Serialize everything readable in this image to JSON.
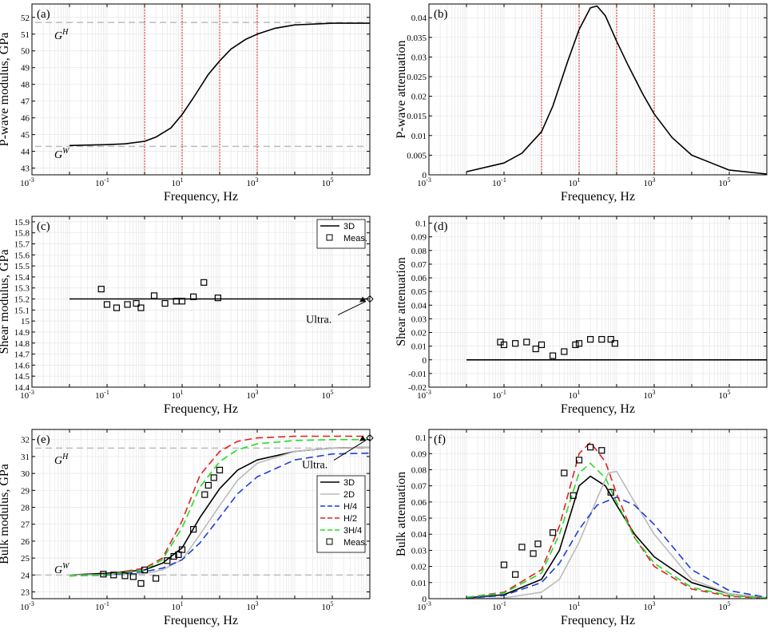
{
  "x_tick_labels": {
    "base": "10",
    "exponents": [
      "-3",
      "-1",
      "1",
      "3",
      "5"
    ]
  },
  "chart_data": [
    {
      "id": "a",
      "type": "line",
      "panel_label": "(a)",
      "xlabel": "Frequency, Hz",
      "ylabel": "P-wave modulus, GPa",
      "xscale": "log",
      "xlim": [
        0.001,
        1000000
      ],
      "ylim": [
        42.6,
        52.8
      ],
      "yticks": [
        43,
        44,
        45,
        46,
        47,
        48,
        49,
        50,
        51,
        52
      ],
      "ytick_labels": [
        "43",
        "44",
        "45",
        "46",
        "47",
        "48",
        "49",
        "50",
        "51",
        "52"
      ],
      "vlines": [
        1,
        10,
        100,
        1000
      ],
      "hlines": [
        {
          "y": 51.7,
          "label_base": "G",
          "label_sup": "H",
          "label_y": 50.9
        },
        {
          "y": 44.3,
          "label_base": "G",
          "label_sup": "W",
          "label_y": 43.8
        }
      ],
      "series": [
        {
          "name": "3D",
          "color": "#000000",
          "dash": "",
          "x": [
            0.01,
            0.1,
            0.3,
            1,
            2,
            5,
            10,
            20,
            50,
            100,
            200,
            500,
            1000,
            3000,
            10000,
            100000,
            1000000
          ],
          "y": [
            44.35,
            44.4,
            44.45,
            44.6,
            44.85,
            45.4,
            46.2,
            47.2,
            48.6,
            49.4,
            50.1,
            50.7,
            51.0,
            51.35,
            51.55,
            51.65,
            51.65
          ]
        }
      ]
    },
    {
      "id": "b",
      "type": "line",
      "panel_label": "(b)",
      "xlabel": "Frequency, Hz",
      "ylabel": "P-wave attenuation",
      "xscale": "log",
      "xlim": [
        0.001,
        1000000
      ],
      "ylim": [
        0,
        0.0435
      ],
      "yticks": [
        0,
        0.005,
        0.01,
        0.015,
        0.02,
        0.025,
        0.03,
        0.035,
        0.04
      ],
      "ytick_labels": [
        "0",
        "0.005",
        "0.01",
        "0.015",
        "0.02",
        "0.025",
        "0.03",
        "0.035",
        "0.04"
      ],
      "vlines": [
        1,
        10,
        100,
        1000
      ],
      "series": [
        {
          "name": "3D",
          "color": "#000000",
          "dash": "",
          "x": [
            0.01,
            0.1,
            0.3,
            1,
            2,
            5,
            10,
            20,
            30,
            50,
            100,
            200,
            500,
            1000,
            3000,
            10000,
            100000,
            1000000
          ],
          "y": [
            0.0008,
            0.003,
            0.0055,
            0.011,
            0.0175,
            0.029,
            0.037,
            0.0425,
            0.043,
            0.0405,
            0.034,
            0.028,
            0.0205,
            0.0155,
            0.0095,
            0.005,
            0.0012,
            0.0002
          ]
        }
      ]
    },
    {
      "id": "c",
      "type": "line",
      "panel_label": "(c)",
      "xlabel": "Frequency, Hz",
      "ylabel": "Shear modulus, GPa",
      "xscale": "log",
      "xlim": [
        0.001,
        1000000
      ],
      "ylim": [
        14.4,
        15.95
      ],
      "yticks": [
        14.4,
        14.5,
        14.6,
        14.7,
        14.8,
        14.9,
        15,
        15.1,
        15.2,
        15.3,
        15.4,
        15.5,
        15.6,
        15.7,
        15.8,
        15.9
      ],
      "ytick_labels": [
        "14.4",
        "14.5",
        "14.6",
        "14.7",
        "14.8",
        "14.9",
        "15",
        "15.1",
        "15.2",
        "15.3",
        "15.4",
        "15.5",
        "15.6",
        "15.7",
        "15.8",
        "15.9"
      ],
      "legend": {
        "position": "top-right",
        "entries": [
          {
            "label": "3D",
            "kind": "line",
            "color": "#000000",
            "dash": ""
          },
          {
            "label": "Meas.",
            "kind": "square",
            "color": "#000000"
          }
        ]
      },
      "series": [
        {
          "name": "3D",
          "color": "#000000",
          "dash": "",
          "x": [
            0.01,
            1000000
          ],
          "y": [
            15.2,
            15.2
          ]
        }
      ],
      "measurements": {
        "x": [
          0.07,
          0.1,
          0.18,
          0.35,
          0.6,
          0.8,
          1.8,
          3.5,
          7,
          10,
          20,
          38,
          90
        ],
        "y": [
          15.29,
          15.15,
          15.12,
          15.15,
          15.16,
          15.12,
          15.23,
          15.16,
          15.18,
          15.18,
          15.22,
          15.35,
          15.21
        ]
      },
      "ultra": {
        "x": 1000000,
        "y": 15.2,
        "label": "Ultra."
      }
    },
    {
      "id": "d",
      "type": "line",
      "panel_label": "(d)",
      "xlabel": "Frequency, Hz",
      "ylabel": "Shear attenuation",
      "xscale": "log",
      "xlim": [
        0.001,
        1000000
      ],
      "ylim": [
        -0.02,
        0.105
      ],
      "yticks": [
        -0.02,
        -0.01,
        0,
        0.01,
        0.02,
        0.03,
        0.04,
        0.05,
        0.06,
        0.07,
        0.08,
        0.09,
        0.1
      ],
      "ytick_labels": [
        "-0.02",
        "-0.01",
        "0",
        "0.01",
        "0.02",
        "0.03",
        "0.04",
        "0.05",
        "0.06",
        "0.07",
        "0.08",
        "0.09",
        "0.1"
      ],
      "series": [
        {
          "name": "3D",
          "color": "#000000",
          "dash": "",
          "x": [
            0.01,
            1000000
          ],
          "y": [
            0,
            0
          ]
        }
      ],
      "measurements": {
        "x": [
          0.08,
          0.1,
          0.2,
          0.4,
          0.7,
          1,
          2,
          4,
          8,
          10,
          20,
          40,
          70,
          90
        ],
        "y": [
          0.013,
          0.011,
          0.012,
          0.013,
          0.008,
          0.011,
          0.003,
          0.006,
          0.011,
          0.012,
          0.015,
          0.015,
          0.015,
          0.012
        ]
      }
    },
    {
      "id": "e",
      "type": "line",
      "panel_label": "(e)",
      "xlabel": "Frequency, Hz",
      "ylabel": "Bulk modulus, GPa",
      "xscale": "log",
      "xlim": [
        0.001,
        1000000
      ],
      "ylim": [
        22.6,
        32.6
      ],
      "yticks": [
        23,
        24,
        25,
        26,
        27,
        28,
        29,
        30,
        31,
        32
      ],
      "ytick_labels": [
        "23",
        "24",
        "25",
        "26",
        "27",
        "28",
        "29",
        "30",
        "31",
        "32"
      ],
      "hlines": [
        {
          "y": 31.5,
          "label_base": "G",
          "label_sup": "H",
          "label_y": 30.75
        },
        {
          "y": 24.0,
          "label_base": "G",
          "label_sup": "W",
          "label_y": 24.3
        }
      ],
      "legend": {
        "position": "right",
        "entries": [
          {
            "label": "3D",
            "kind": "line",
            "color": "#000000",
            "dash": ""
          },
          {
            "label": "2D",
            "kind": "line",
            "color": "#bbbbbb",
            "dash": ""
          },
          {
            "label": "H/4",
            "kind": "line",
            "color": "#1f3fd6",
            "dash": "9,5"
          },
          {
            "label": "H/2",
            "kind": "line",
            "color": "#e02020",
            "dash": "9,5"
          },
          {
            "label": "3H/4",
            "kind": "line",
            "color": "#22dd22",
            "dash": "9,5"
          },
          {
            "label": "Meas.",
            "kind": "square",
            "color": "#000000"
          }
        ]
      },
      "series": [
        {
          "name": "3D",
          "color": "#000000",
          "dash": "",
          "x": [
            0.01,
            0.1,
            1,
            3,
            10,
            30,
            100,
            300,
            1000,
            10000,
            100000,
            1000000
          ],
          "y": [
            24.0,
            24.1,
            24.3,
            24.7,
            25.6,
            27.4,
            29.1,
            30.2,
            30.8,
            31.3,
            31.5,
            31.55
          ]
        },
        {
          "name": "2D",
          "color": "#bbbbbb",
          "dash": "",
          "x": [
            0.01,
            0.1,
            1,
            3,
            10,
            30,
            100,
            300,
            1000,
            10000,
            100000,
            1000000
          ],
          "y": [
            24.0,
            24.02,
            24.08,
            24.3,
            24.9,
            26.4,
            28.1,
            29.6,
            30.6,
            31.3,
            31.5,
            31.55
          ]
        },
        {
          "name": "H/4",
          "color": "#1f3fd6",
          "dash": "9,5",
          "x": [
            0.01,
            0.1,
            1,
            3,
            10,
            30,
            100,
            300,
            1000,
            10000,
            100000,
            1000000
          ],
          "y": [
            23.95,
            24.0,
            24.2,
            24.4,
            24.9,
            25.9,
            27.4,
            28.8,
            29.8,
            30.8,
            31.15,
            31.2
          ]
        },
        {
          "name": "H/2",
          "color": "#e02020",
          "dash": "9,5",
          "x": [
            0.01,
            0.1,
            1,
            3,
            10,
            30,
            100,
            300,
            1000,
            10000,
            100000,
            1000000
          ],
          "y": [
            23.95,
            24.05,
            24.4,
            25.0,
            27.2,
            29.9,
            31.3,
            31.9,
            32.1,
            32.2,
            32.2,
            32.2
          ]
        },
        {
          "name": "3H/4",
          "color": "#22dd22",
          "dash": "9,5",
          "x": [
            0.01,
            0.1,
            1,
            3,
            10,
            30,
            100,
            300,
            1000,
            10000,
            100000,
            1000000
          ],
          "y": [
            23.95,
            24.03,
            24.3,
            24.9,
            26.8,
            29.2,
            30.7,
            31.4,
            31.75,
            31.95,
            32.0,
            32.0
          ]
        }
      ],
      "measurements": {
        "x": [
          0.08,
          0.15,
          0.3,
          0.5,
          0.8,
          1.0,
          2,
          4,
          6,
          8,
          10,
          20,
          40,
          50,
          70,
          100
        ],
        "y": [
          24.05,
          24.0,
          23.95,
          23.9,
          23.5,
          24.3,
          23.8,
          24.85,
          25.1,
          25.2,
          25.5,
          26.7,
          28.75,
          29.3,
          29.75,
          30.2
        ]
      },
      "ultra": {
        "x": 1000000,
        "y": 32.1,
        "label": "Ultra."
      }
    },
    {
      "id": "f",
      "type": "line",
      "panel_label": "(f)",
      "xlabel": "Frequency, Hz",
      "ylabel": "Bulk attenuation",
      "xscale": "log",
      "xlim": [
        0.001,
        1000000
      ],
      "ylim": [
        0,
        0.105
      ],
      "yticks": [
        0,
        0.01,
        0.02,
        0.03,
        0.04,
        0.05,
        0.06,
        0.07,
        0.08,
        0.09,
        0.1
      ],
      "ytick_labels": [
        "0",
        "0.01",
        "0.02",
        "0.03",
        "0.04",
        "0.05",
        "0.06",
        "0.07",
        "0.08",
        "0.09",
        "0.1"
      ],
      "series": [
        {
          "name": "3D",
          "color": "#000000",
          "dash": "",
          "x": [
            0.01,
            0.1,
            1,
            3,
            10,
            20,
            50,
            100,
            300,
            1000,
            10000,
            100000,
            1000000
          ],
          "y": [
            0.0005,
            0.0025,
            0.012,
            0.03,
            0.07,
            0.076,
            0.07,
            0.058,
            0.04,
            0.026,
            0.01,
            0.003,
            0.0005
          ]
        },
        {
          "name": "2D",
          "color": "#bbbbbb",
          "dash": "",
          "x": [
            0.01,
            0.1,
            1,
            3,
            10,
            30,
            60,
            100,
            300,
            1000,
            10000,
            100000,
            1000000
          ],
          "y": [
            0.0,
            0.0005,
            0.004,
            0.012,
            0.035,
            0.062,
            0.078,
            0.079,
            0.06,
            0.04,
            0.012,
            0.003,
            0.0005
          ]
        },
        {
          "name": "H/4",
          "color": "#1f3fd6",
          "dash": "9,5",
          "x": [
            0.01,
            0.1,
            1,
            3,
            10,
            30,
            100,
            300,
            1000,
            10000,
            100000,
            1000000
          ],
          "y": [
            0.0003,
            0.002,
            0.01,
            0.022,
            0.043,
            0.058,
            0.063,
            0.058,
            0.046,
            0.018,
            0.005,
            0.0008
          ]
        },
        {
          "name": "H/2",
          "color": "#e02020",
          "dash": "9,5",
          "x": [
            0.01,
            0.1,
            1,
            3,
            10,
            20,
            50,
            100,
            300,
            1000,
            10000,
            100000,
            1000000
          ],
          "y": [
            0.0008,
            0.004,
            0.018,
            0.045,
            0.09,
            0.097,
            0.085,
            0.065,
            0.038,
            0.02,
            0.006,
            0.0015,
            0.0002
          ]
        },
        {
          "name": "3H/4",
          "color": "#22dd22",
          "dash": "9,5",
          "x": [
            0.01,
            0.1,
            1,
            3,
            10,
            20,
            50,
            100,
            300,
            1000,
            10000,
            100000,
            1000000
          ],
          "y": [
            0.0008,
            0.0035,
            0.016,
            0.04,
            0.078,
            0.084,
            0.075,
            0.06,
            0.038,
            0.022,
            0.007,
            0.002,
            0.0003
          ]
        }
      ],
      "measurements": {
        "x": [
          0.1,
          0.2,
          0.3,
          0.6,
          0.8,
          2,
          4,
          7,
          10,
          20,
          40,
          70
        ],
        "y": [
          0.021,
          0.015,
          0.032,
          0.028,
          0.034,
          0.041,
          0.078,
          0.064,
          0.086,
          0.094,
          0.092,
          0.066
        ]
      }
    }
  ]
}
